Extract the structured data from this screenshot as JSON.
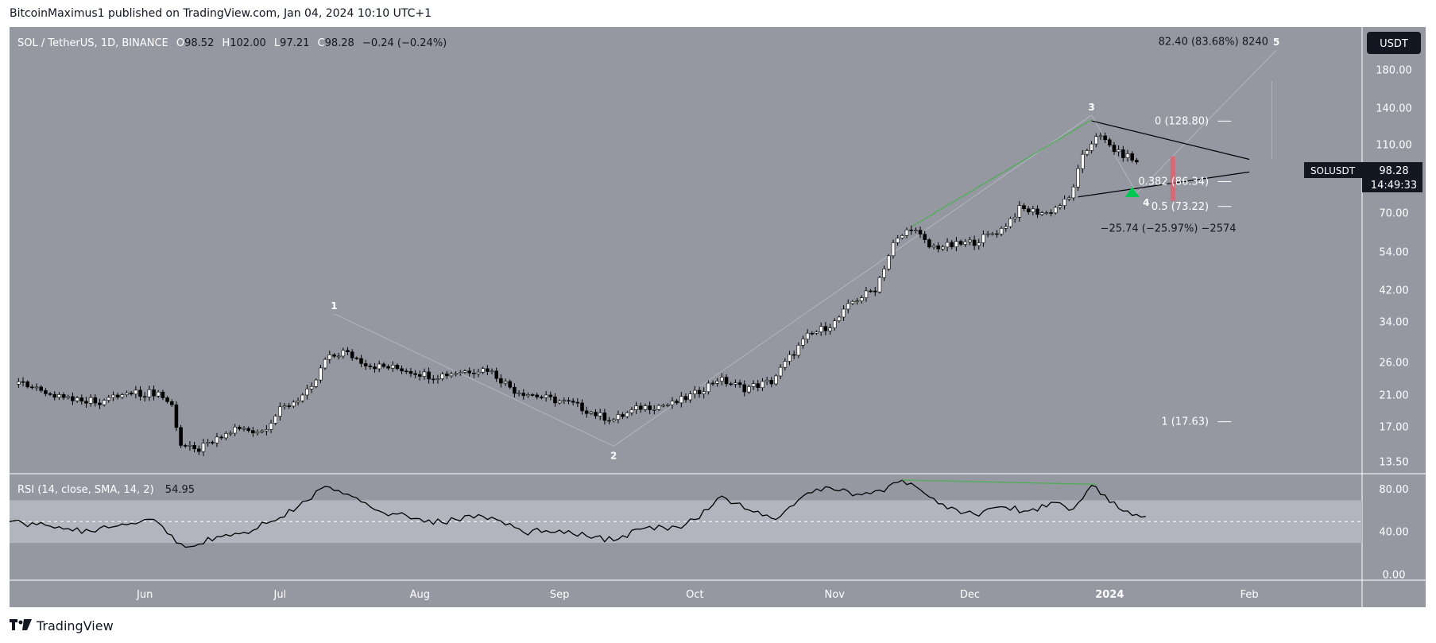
{
  "caption": "BitcoinMaximus1 published on TradingView.com, Jan 04, 2024 10:10 UTC+1",
  "footer": {
    "brand": "TradingView",
    "logo_icon": "tradingview-logo-icon"
  },
  "colors": {
    "panel_bg": "#9598a1",
    "rsi_band": "#b2b5be",
    "axis_bg": "#9598a1",
    "up_candle": "#ffffff",
    "down_candle": "#000000",
    "green_line": "#4caf50",
    "red_bar": "#f7525f",
    "label_bg": "#131722"
  },
  "chart_data": {
    "type": "candlestick",
    "symbol_line": {
      "symbol": "SOL / TetherUS, 1D, BINANCE",
      "o_label": "O",
      "o_value": "98.52",
      "h_label": "H",
      "h_value": "102.00",
      "l_label": "L",
      "l_value": "97.21",
      "c_label": "C",
      "c_value": "98.28",
      "change": "−0.24 (−0.24%)"
    },
    "currency_button": "USDT",
    "price_scale": "log",
    "y_ticks": [
      "180.00",
      "140.00",
      "110.00",
      "70.00",
      "54.00",
      "42.00",
      "34.00",
      "26.00",
      "21.00",
      "17.00",
      "13.50"
    ],
    "y_tick_values": [
      180,
      140,
      110,
      70,
      54,
      42,
      34,
      26,
      21,
      17,
      13.5
    ],
    "ylim": [
      12.5,
      240
    ],
    "x_ticks": [
      "Jun",
      "Jul",
      "Aug",
      "Sep",
      "Oct",
      "Nov",
      "Dec",
      "2024",
      "Feb"
    ],
    "x_tick_days": [
      0,
      30,
      61,
      92,
      122,
      153,
      183,
      214,
      245
    ],
    "x_range_days": [
      -30,
      270
    ],
    "price_label": {
      "symbol": "SOLUSDT",
      "value": "98.28",
      "countdown": "14:49:33",
      "price": 98.28
    },
    "closes": [
      {
        "d": -28,
        "c": 22.6
      },
      {
        "d": -20,
        "c": 21.0
      },
      {
        "d": -10,
        "c": 20.2
      },
      {
        "d": -4,
        "c": 21.2
      },
      {
        "d": 3,
        "c": 21.4
      },
      {
        "d": 6,
        "c": 19.6
      },
      {
        "d": 8,
        "c": 15.2
      },
      {
        "d": 11,
        "c": 14.5
      },
      {
        "d": 16,
        "c": 15.6
      },
      {
        "d": 20,
        "c": 16.8
      },
      {
        "d": 26,
        "c": 16.6
      },
      {
        "d": 30,
        "c": 19.0
      },
      {
        "d": 37,
        "c": 21.8
      },
      {
        "d": 40,
        "c": 26.5
      },
      {
        "d": 44,
        "c": 28.0
      },
      {
        "d": 50,
        "c": 25.6
      },
      {
        "d": 57,
        "c": 25.0
      },
      {
        "d": 64,
        "c": 23.8
      },
      {
        "d": 70,
        "c": 24.6
      },
      {
        "d": 76,
        "c": 25.0
      },
      {
        "d": 82,
        "c": 21.7
      },
      {
        "d": 89,
        "c": 20.6
      },
      {
        "d": 95,
        "c": 19.8
      },
      {
        "d": 101,
        "c": 18.3
      },
      {
        "d": 104,
        "c": 17.9
      },
      {
        "d": 110,
        "c": 19.4
      },
      {
        "d": 117,
        "c": 19.8
      },
      {
        "d": 122,
        "c": 21.2
      },
      {
        "d": 127,
        "c": 23.4
      },
      {
        "d": 133,
        "c": 22.0
      },
      {
        "d": 139,
        "c": 23.0
      },
      {
        "d": 143,
        "c": 27.0
      },
      {
        "d": 147,
        "c": 31.0
      },
      {
        "d": 153,
        "c": 34.0
      },
      {
        "d": 157,
        "c": 39.0
      },
      {
        "d": 162,
        "c": 42.5
      },
      {
        "d": 166,
        "c": 57.0
      },
      {
        "d": 170,
        "c": 64.0
      },
      {
        "d": 174,
        "c": 56.0
      },
      {
        "d": 179,
        "c": 56.5
      },
      {
        "d": 184,
        "c": 58.0
      },
      {
        "d": 190,
        "c": 63.0
      },
      {
        "d": 194,
        "c": 72.0
      },
      {
        "d": 200,
        "c": 70.0
      },
      {
        "d": 205,
        "c": 77.0
      },
      {
        "d": 208,
        "c": 101.0
      },
      {
        "d": 211,
        "c": 118.0
      },
      {
        "d": 216,
        "c": 104.0
      },
      {
        "d": 218,
        "c": 102.0
      },
      {
        "d": 220,
        "c": 98.3
      }
    ],
    "waves": [
      {
        "label": "1",
        "d": 42,
        "price": 36.0
      },
      {
        "label": "2",
        "d": 104,
        "price": 15.0
      },
      {
        "label": "3",
        "d": 210,
        "price": 134.0
      },
      {
        "label": "4",
        "d": 220,
        "price": 80.0
      },
      {
        "label": "5",
        "d": 251,
        "price": 206.0
      }
    ],
    "fib_levels": [
      {
        "label": "0 (128.80)",
        "value": 128.8
      },
      {
        "label": "0.382 (86.34)",
        "value": 86.34
      },
      {
        "label": "0.5 (73.22)",
        "value": 73.22
      },
      {
        "label": "1 (17.63)",
        "value": 17.63
      }
    ],
    "annotations": {
      "target": "82.40 (83.68%) 8240",
      "drop": "−25.74 (−25.97%) −2574"
    },
    "rsi": {
      "legend": "RSI (14, close, SMA, 14, 2)",
      "value_label": "54.95",
      "value": 54.95,
      "y_ticks": [
        "80.00",
        "40.00",
        "0.00"
      ],
      "y_tick_values": [
        80,
        40,
        0
      ],
      "band": [
        30,
        70
      ],
      "midline": 50,
      "ylim": [
        -5,
        95
      ],
      "points": [
        {
          "d": -30,
          "v": 50
        },
        {
          "d": -24,
          "v": 47
        },
        {
          "d": -18,
          "v": 43
        },
        {
          "d": -12,
          "v": 41
        },
        {
          "d": -6,
          "v": 46
        },
        {
          "d": 0,
          "v": 52
        },
        {
          "d": 3,
          "v": 49
        },
        {
          "d": 7,
          "v": 30
        },
        {
          "d": 11,
          "v": 27
        },
        {
          "d": 16,
          "v": 36
        },
        {
          "d": 22,
          "v": 40
        },
        {
          "d": 28,
          "v": 50
        },
        {
          "d": 34,
          "v": 64
        },
        {
          "d": 40,
          "v": 83
        },
        {
          "d": 44,
          "v": 76
        },
        {
          "d": 52,
          "v": 60
        },
        {
          "d": 60,
          "v": 53
        },
        {
          "d": 66,
          "v": 49
        },
        {
          "d": 72,
          "v": 56
        },
        {
          "d": 78,
          "v": 52
        },
        {
          "d": 84,
          "v": 40
        },
        {
          "d": 92,
          "v": 42
        },
        {
          "d": 100,
          "v": 36
        },
        {
          "d": 104,
          "v": 32
        },
        {
          "d": 110,
          "v": 43
        },
        {
          "d": 118,
          "v": 45
        },
        {
          "d": 122,
          "v": 52
        },
        {
          "d": 128,
          "v": 74
        },
        {
          "d": 134,
          "v": 61
        },
        {
          "d": 140,
          "v": 52
        },
        {
          "d": 146,
          "v": 74
        },
        {
          "d": 152,
          "v": 82
        },
        {
          "d": 158,
          "v": 76
        },
        {
          "d": 164,
          "v": 78
        },
        {
          "d": 168,
          "v": 89
        },
        {
          "d": 172,
          "v": 80
        },
        {
          "d": 178,
          "v": 62
        },
        {
          "d": 184,
          "v": 57
        },
        {
          "d": 190,
          "v": 64
        },
        {
          "d": 196,
          "v": 60
        },
        {
          "d": 202,
          "v": 68
        },
        {
          "d": 206,
          "v": 62
        },
        {
          "d": 210,
          "v": 84
        },
        {
          "d": 214,
          "v": 68
        },
        {
          "d": 218,
          "v": 60
        },
        {
          "d": 222,
          "v": 54.95
        }
      ]
    }
  }
}
